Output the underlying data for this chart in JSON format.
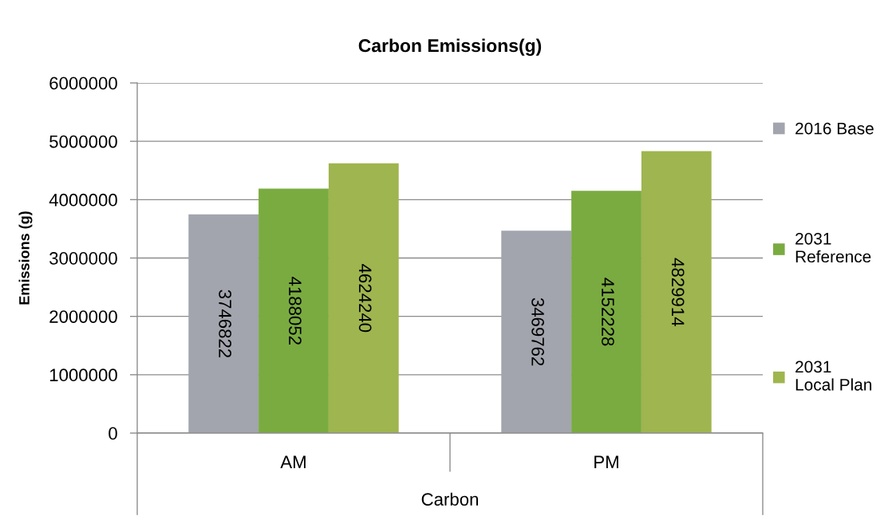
{
  "chart_data": {
    "type": "bar",
    "title": "Carbon Emissions(g)",
    "xlabel": "Carbon",
    "ylabel": "Emissions (g)",
    "categories": [
      "AM",
      "PM"
    ],
    "series": [
      {
        "name": "2016 Base",
        "color": "#a2a5ad",
        "values": [
          3746822,
          3469762
        ]
      },
      {
        "name": "2031 Reference",
        "color": "#7aab40",
        "values": [
          4188052,
          4152228
        ]
      },
      {
        "name": "2031 Local Plan",
        "color": "#9fb54f",
        "values": [
          4624240,
          4829914
        ]
      }
    ],
    "ylim": [
      0,
      6000000
    ],
    "yticks": [
      0,
      1000000,
      2000000,
      3000000,
      4000000,
      5000000,
      6000000
    ],
    "grid": "y",
    "legend": "right",
    "data_labels": true
  }
}
